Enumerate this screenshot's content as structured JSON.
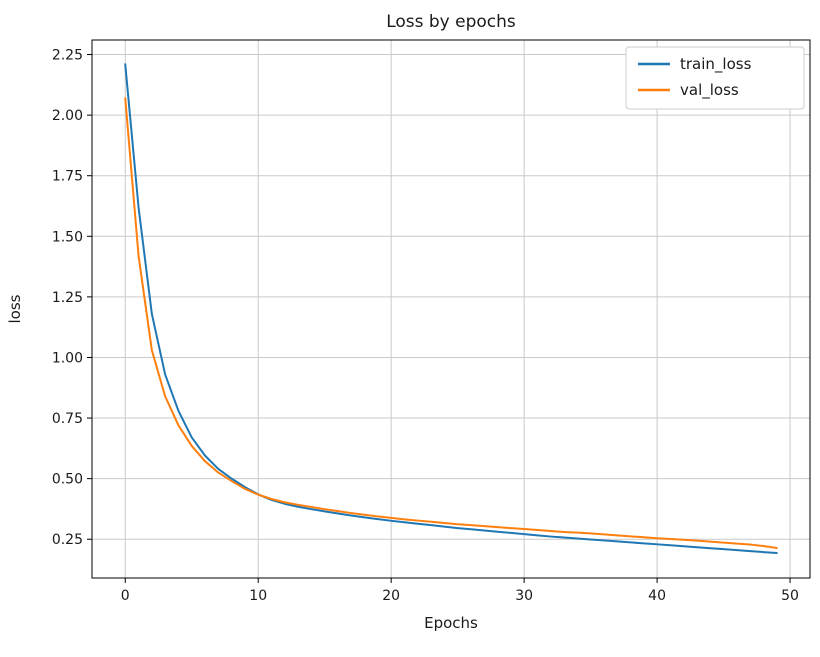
{
  "figure": {
    "title": "Loss by epochs",
    "xlabel": "Epochs",
    "ylabel": "loss"
  },
  "chart_data": {
    "type": "line",
    "title": "Loss by epochs",
    "xlabel": "Epochs",
    "ylabel": "loss",
    "grid": true,
    "legend_position": "upper right",
    "xlim": [
      -2.5,
      51.5
    ],
    "ylim": [
      0.09,
      2.31
    ],
    "xticks": [
      0,
      10,
      20,
      30,
      40,
      50
    ],
    "xtick_labels": [
      "0",
      "10",
      "20",
      "30",
      "40",
      "50"
    ],
    "yticks": [
      0.25,
      0.5,
      0.75,
      1.0,
      1.25,
      1.5,
      1.75,
      2.0,
      2.25
    ],
    "ytick_labels": [
      "0.25",
      "0.50",
      "0.75",
      "1.00",
      "1.25",
      "1.50",
      "1.75",
      "2.00",
      "2.25"
    ],
    "x": [
      0,
      1,
      2,
      3,
      4,
      5,
      6,
      7,
      8,
      9,
      10,
      11,
      12,
      13,
      14,
      15,
      16,
      17,
      18,
      19,
      20,
      21,
      22,
      23,
      24,
      25,
      26,
      27,
      28,
      29,
      30,
      31,
      32,
      33,
      34,
      35,
      36,
      37,
      38,
      39,
      40,
      41,
      42,
      43,
      44,
      45,
      46,
      47,
      48,
      49
    ],
    "series": [
      {
        "name": "train_loss",
        "color": "#1f77b4",
        "values": [
          2.21,
          1.62,
          1.18,
          0.93,
          0.78,
          0.67,
          0.595,
          0.54,
          0.5,
          0.465,
          0.435,
          0.412,
          0.396,
          0.384,
          0.374,
          0.365,
          0.356,
          0.348,
          0.34,
          0.333,
          0.326,
          0.32,
          0.314,
          0.308,
          0.302,
          0.296,
          0.291,
          0.286,
          0.281,
          0.276,
          0.271,
          0.266,
          0.261,
          0.257,
          0.253,
          0.249,
          0.245,
          0.241,
          0.237,
          0.233,
          0.229,
          0.225,
          0.221,
          0.217,
          0.213,
          0.209,
          0.205,
          0.201,
          0.197,
          0.193
        ]
      },
      {
        "name": "val_loss",
        "color": "#ff7f0e",
        "values": [
          2.07,
          1.42,
          1.03,
          0.84,
          0.72,
          0.635,
          0.572,
          0.525,
          0.49,
          0.458,
          0.434,
          0.416,
          0.402,
          0.392,
          0.383,
          0.374,
          0.366,
          0.358,
          0.351,
          0.344,
          0.338,
          0.332,
          0.327,
          0.322,
          0.317,
          0.312,
          0.308,
          0.304,
          0.3,
          0.296,
          0.292,
          0.288,
          0.284,
          0.28,
          0.277,
          0.274,
          0.27,
          0.266,
          0.262,
          0.258,
          0.254,
          0.251,
          0.248,
          0.244,
          0.24,
          0.236,
          0.232,
          0.228,
          0.222,
          0.214
        ]
      }
    ]
  }
}
